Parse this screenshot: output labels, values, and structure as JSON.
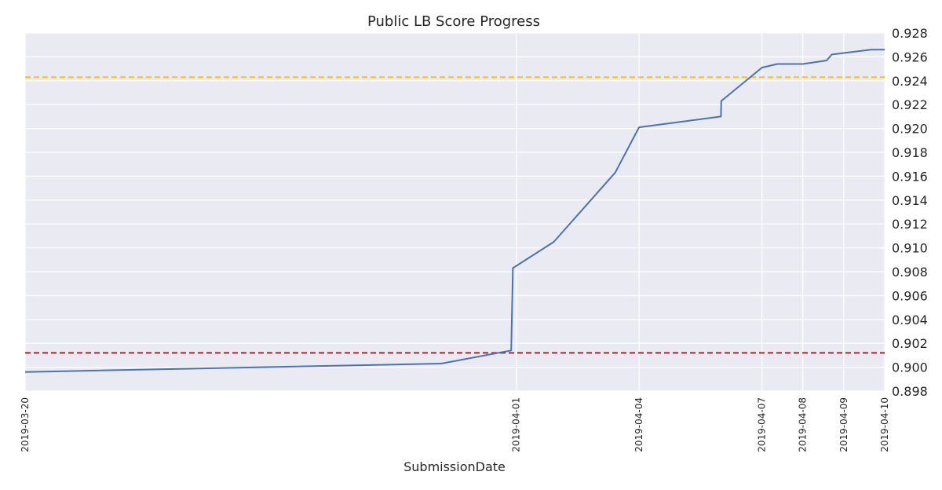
{
  "chart_data": {
    "type": "line",
    "title": "Public LB Score Progress",
    "xlabel": "SubmissionDate",
    "ylabel": "",
    "ylim": [
      0.898,
      0.928
    ],
    "xlim": [
      "2019-03-20",
      "2019-04-10"
    ],
    "yticks": [
      "0.898",
      "0.900",
      "0.902",
      "0.904",
      "0.906",
      "0.908",
      "0.910",
      "0.912",
      "0.914",
      "0.916",
      "0.918",
      "0.920",
      "0.922",
      "0.924",
      "0.926",
      "0.928"
    ],
    "xticks": [
      {
        "label": "2019-03-20",
        "value": "2019-03-20"
      },
      {
        "label": "2019-04-01",
        "value": "2019-04-01"
      },
      {
        "label": "2019-04-04",
        "value": "2019-04-04"
      },
      {
        "label": "2019-04-07",
        "value": "2019-04-07"
      },
      {
        "label": "2019-04-08",
        "value": "2019-04-08"
      },
      {
        "label": "2019-04-09",
        "value": "2019-04-09"
      },
      {
        "label": "2019-04-10",
        "value": "2019-04-10"
      }
    ],
    "y_axis_position": "right",
    "grid": true,
    "background": "#eaeaf2",
    "series": [
      {
        "color": "#4c72b0",
        "points": [
          [
            "2019-03-20 00:00",
            0.8996
          ],
          [
            "2019-03-30 04:00",
            0.9003
          ],
          [
            "2019-03-31 21:00",
            0.9014
          ],
          [
            "2019-03-31 22:00",
            0.9083
          ],
          [
            "2019-04-01 22:00",
            0.9105
          ],
          [
            "2019-04-03 10:00",
            0.9163
          ],
          [
            "2019-04-04 00:00",
            0.9201
          ],
          [
            "2019-04-06 00:00",
            0.921
          ],
          [
            "2019-04-06 00:10",
            0.9223
          ],
          [
            "2019-04-07 00:00",
            0.9251
          ],
          [
            "2019-04-07 09:00",
            0.9254
          ],
          [
            "2019-04-08 00:00",
            0.9254
          ],
          [
            "2019-04-08 14:00",
            0.9257
          ],
          [
            "2019-04-08 17:00",
            0.9262
          ],
          [
            "2019-04-09 16:00",
            0.9266
          ],
          [
            "2019-04-10 00:00",
            0.9266
          ]
        ]
      }
    ],
    "reference_lines": [
      {
        "y": 0.9243,
        "color": "#ffc107",
        "style": "dashed"
      },
      {
        "y": 0.9012,
        "color": "#b22222",
        "style": "dashed"
      }
    ]
  }
}
